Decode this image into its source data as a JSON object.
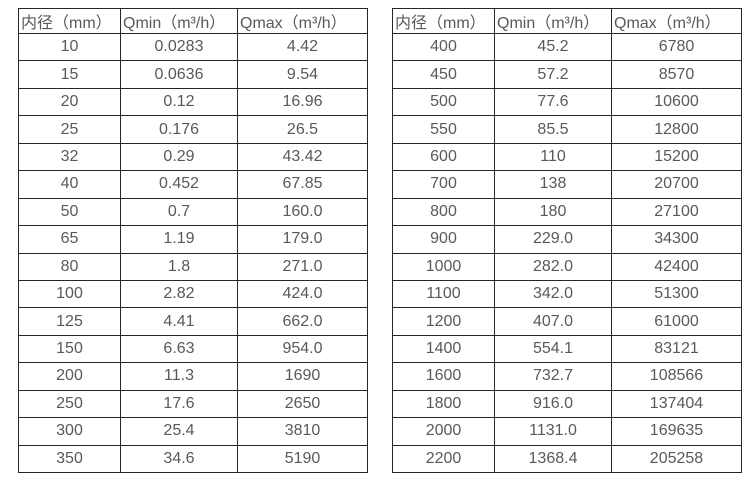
{
  "colors": {
    "background": "#ffffff",
    "border": "#262626",
    "text": "#595959"
  },
  "tables": [
    {
      "name": "flow-table-small-diameters",
      "headers": [
        "内径（mm）",
        "Qmin（m³/h）",
        "Qmax（m³/h）"
      ],
      "rows": [
        [
          "10",
          "0.0283",
          "4.42"
        ],
        [
          "15",
          "0.0636",
          "9.54"
        ],
        [
          "20",
          "0.12",
          "16.96"
        ],
        [
          "25",
          "0.176",
          "26.5"
        ],
        [
          "32",
          "0.29",
          "43.42"
        ],
        [
          "40",
          "0.452",
          "67.85"
        ],
        [
          "50",
          "0.7",
          "160.0"
        ],
        [
          "65",
          "1.19",
          "179.0"
        ],
        [
          "80",
          "1.8",
          "271.0"
        ],
        [
          "100",
          "2.82",
          "424.0"
        ],
        [
          "125",
          "4.41",
          "662.0"
        ],
        [
          "150",
          "6.63",
          "954.0"
        ],
        [
          "200",
          "11.3",
          "1690"
        ],
        [
          "250",
          "17.6",
          "2650"
        ],
        [
          "300",
          "25.4",
          "3810"
        ],
        [
          "350",
          "34.6",
          "5190"
        ]
      ]
    },
    {
      "name": "flow-table-large-diameters",
      "headers": [
        "内径（mm）",
        "Qmin（m³/h）",
        "Qmax（m³/h）"
      ],
      "rows": [
        [
          "400",
          "45.2",
          "6780"
        ],
        [
          "450",
          "57.2",
          "8570"
        ],
        [
          "500",
          "77.6",
          "10600"
        ],
        [
          "550",
          "85.5",
          "12800"
        ],
        [
          "600",
          "110",
          "15200"
        ],
        [
          "700",
          "138",
          "20700"
        ],
        [
          "800",
          "180",
          "27100"
        ],
        [
          "900",
          "229.0",
          "34300"
        ],
        [
          "1000",
          "282.0",
          "42400"
        ],
        [
          "1100",
          "342.0",
          "51300"
        ],
        [
          "1200",
          "407.0",
          "61000"
        ],
        [
          "1400",
          "554.1",
          "83121"
        ],
        [
          "1600",
          "732.7",
          "108566"
        ],
        [
          "1800",
          "916.0",
          "137404"
        ],
        [
          "2000",
          "1131.0",
          "169635"
        ],
        [
          "2200",
          "1368.4",
          "205258"
        ]
      ]
    }
  ]
}
